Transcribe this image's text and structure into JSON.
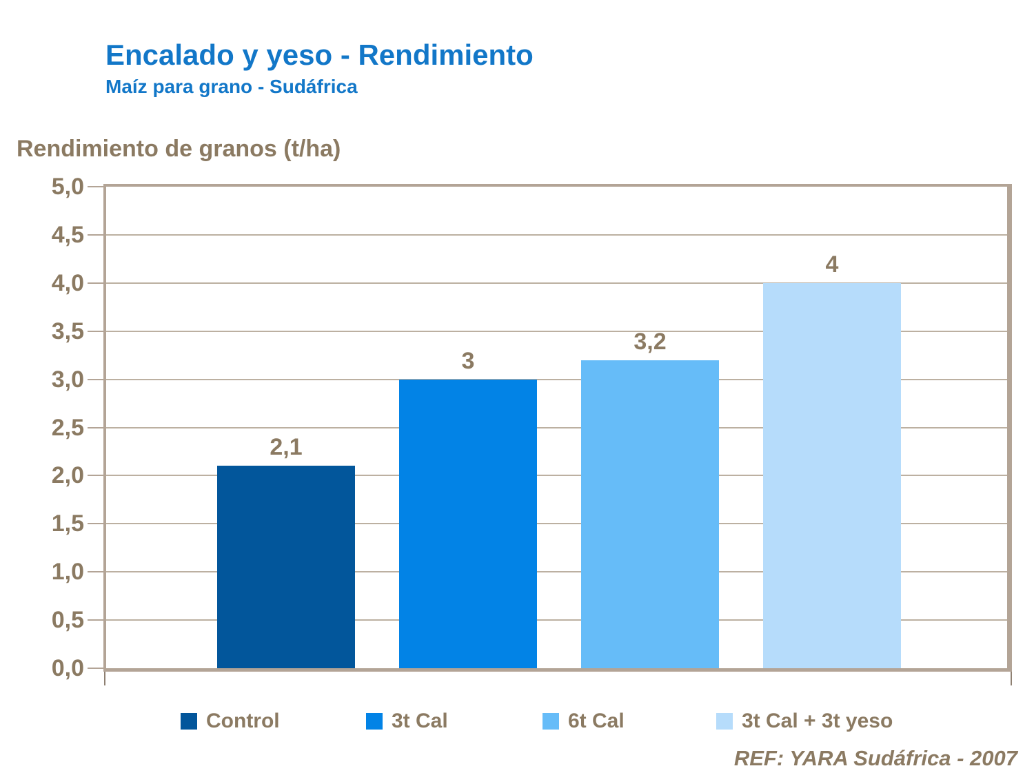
{
  "header": {
    "title": "Encalado y yeso - Rendimiento",
    "subtitle": "Maíz para grano - Sudáfrica"
  },
  "chart_data": {
    "type": "bar",
    "title": "Encalado y yeso - Rendimiento | Maíz para grano - Sudáfrica",
    "ylabel": "Rendimiento de granos (t/ha)",
    "xlabel": "",
    "categories": [
      "Control",
      "3t Cal",
      "6t Cal",
      "3t Cal + 3t yeso"
    ],
    "values": [
      2.1,
      3,
      3.2,
      4
    ],
    "value_labels": [
      "2,1",
      "3",
      "3,2",
      "4"
    ],
    "bar_colors": [
      "#02569B",
      "#0283E6",
      "#66BCF8",
      "#B6DCFB"
    ],
    "ylim": [
      0,
      5
    ],
    "ytick_step": 0.5,
    "ytick_labels": [
      "0,0",
      "0,5",
      "1,0",
      "1,5",
      "2,0",
      "2,5",
      "3,0",
      "3,5",
      "4,0",
      "4,5",
      "5,0"
    ],
    "grid": true,
    "legend_position": "bottom",
    "decimal_separator": ","
  },
  "legend": {
    "items": [
      {
        "label": "Control",
        "color": "#02569B"
      },
      {
        "label": "3t Cal",
        "color": "#0283E6"
      },
      {
        "label": "6t Cal",
        "color": "#66BCF8"
      },
      {
        "label": "3t Cal + 3t yeso",
        "color": "#B6DCFB"
      }
    ]
  },
  "footer": {
    "ref": "REF: YARA Sudáfrica - 2007"
  },
  "colors": {
    "title_blue": "#1277C8",
    "text_brown": "#8B7A62",
    "frame": "#B3A496",
    "gridline": "#BCB0A1"
  }
}
